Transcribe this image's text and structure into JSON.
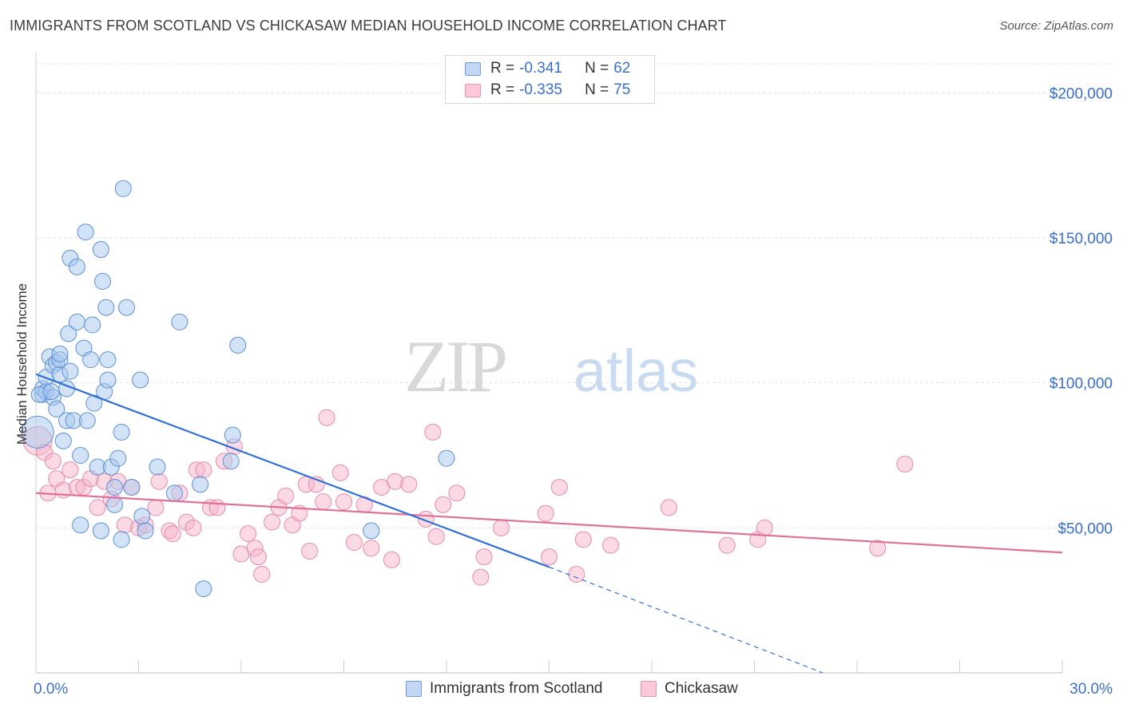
{
  "header": {
    "title": "IMMIGRANTS FROM SCOTLAND VS CHICKASAW MEDIAN HOUSEHOLD INCOME CORRELATION CHART",
    "source": "Source: ZipAtlas.com"
  },
  "watermark": {
    "zip": "ZIP",
    "atlas": "atlas"
  },
  "legend": {
    "rows": [
      {
        "r_label": "R =",
        "r_value": "-0.341",
        "n_label": "N =",
        "n_value": "62"
      },
      {
        "r_label": "R =",
        "r_value": "-0.335",
        "n_label": "N =",
        "n_value": "75"
      }
    ]
  },
  "bottom_legend": {
    "series1": "Immigrants from Scotland",
    "series2": "Chickasaw"
  },
  "colors": {
    "series1_fill": "#a8c8f0",
    "series1_stroke": "#5b8fd6",
    "series1_line": "#2f6fd6",
    "series2_fill": "#f7b6cb",
    "series2_stroke": "#e68aa6",
    "series2_line": "#e0709a",
    "axis_label": "#3a6fcc",
    "grid": "#e2e2e2"
  },
  "chart_data": {
    "type": "scatter",
    "title": "IMMIGRANTS FROM SCOTLAND VS CHICKASAW MEDIAN HOUSEHOLD INCOME CORRELATION CHART",
    "xlabel": "",
    "ylabel": "Median Household Income",
    "xlim": [
      0,
      30
    ],
    "ylim": [
      0,
      210000
    ],
    "x_tick_labels": [
      "0.0%",
      "30.0%"
    ],
    "y_ticks": [
      50000,
      100000,
      150000,
      200000
    ],
    "y_tick_labels": [
      "$50,000",
      "$100,000",
      "$150,000",
      "$200,000"
    ],
    "grid": true,
    "legend_position": "top-center",
    "series": [
      {
        "name": "Immigrants from Scotland",
        "r": -0.341,
        "n": 62,
        "trend": {
          "x": [
            0,
            15
          ],
          "y": [
            103000,
            36500
          ],
          "dashed_to": [
            23,
            0
          ]
        },
        "points": [
          [
            0.05,
            83000
          ],
          [
            0.2,
            96000
          ],
          [
            0.2,
            98000
          ],
          [
            0.3,
            97000
          ],
          [
            0.3,
            102000
          ],
          [
            0.4,
            109000
          ],
          [
            0.5,
            106000
          ],
          [
            0.5,
            95000
          ],
          [
            0.6,
            107000
          ],
          [
            0.6,
            91000
          ],
          [
            0.7,
            103000
          ],
          [
            0.7,
            108000
          ],
          [
            0.7,
            110000
          ],
          [
            0.8,
            80000
          ],
          [
            0.9,
            98000
          ],
          [
            0.9,
            87000
          ],
          [
            0.95,
            117000
          ],
          [
            1.0,
            143000
          ],
          [
            1.0,
            104000
          ],
          [
            1.1,
            87000
          ],
          [
            1.2,
            140000
          ],
          [
            1.2,
            121000
          ],
          [
            1.3,
            75000
          ],
          [
            1.3,
            51000
          ],
          [
            1.4,
            112000
          ],
          [
            1.45,
            152000
          ],
          [
            1.5,
            87000
          ],
          [
            1.6,
            108000
          ],
          [
            1.65,
            120000
          ],
          [
            1.7,
            93000
          ],
          [
            1.8,
            71000
          ],
          [
            1.9,
            49000
          ],
          [
            1.9,
            146000
          ],
          [
            1.95,
            135000
          ],
          [
            2.0,
            97000
          ],
          [
            2.05,
            126000
          ],
          [
            2.1,
            101000
          ],
          [
            2.1,
            108000
          ],
          [
            2.2,
            71000
          ],
          [
            2.3,
            64000
          ],
          [
            2.3,
            58000
          ],
          [
            2.4,
            74000
          ],
          [
            2.5,
            83000
          ],
          [
            2.5,
            46000
          ],
          [
            2.55,
            167000
          ],
          [
            2.65,
            126000
          ],
          [
            2.8,
            64000
          ],
          [
            3.05,
            101000
          ],
          [
            3.1,
            54000
          ],
          [
            3.2,
            49000
          ],
          [
            3.55,
            71000
          ],
          [
            4.05,
            62000
          ],
          [
            4.2,
            121000
          ],
          [
            4.8,
            65000
          ],
          [
            4.9,
            29000
          ],
          [
            5.7,
            73000
          ],
          [
            5.75,
            82000
          ],
          [
            5.9,
            113000
          ],
          [
            9.8,
            49000
          ],
          [
            12.0,
            74000
          ],
          [
            0.1,
            96000
          ],
          [
            0.45,
            97000
          ]
        ]
      },
      {
        "name": "Chickasaw",
        "r": -0.335,
        "n": 75,
        "trend": {
          "x": [
            0,
            30
          ],
          "y": [
            62000,
            41500
          ]
        },
        "points": [
          [
            0.05,
            80000
          ],
          [
            0.25,
            76000
          ],
          [
            0.5,
            73000
          ],
          [
            0.6,
            67000
          ],
          [
            0.8,
            63000
          ],
          [
            1.0,
            70000
          ],
          [
            1.2,
            64000
          ],
          [
            1.4,
            64000
          ],
          [
            1.6,
            67000
          ],
          [
            1.8,
            57000
          ],
          [
            2.0,
            66000
          ],
          [
            2.2,
            60000
          ],
          [
            2.4,
            66000
          ],
          [
            2.6,
            51000
          ],
          [
            2.8,
            64000
          ],
          [
            3.0,
            50000
          ],
          [
            3.2,
            51000
          ],
          [
            3.5,
            57000
          ],
          [
            3.6,
            66000
          ],
          [
            3.9,
            49000
          ],
          [
            4.0,
            48000
          ],
          [
            4.2,
            62000
          ],
          [
            4.4,
            52000
          ],
          [
            4.6,
            50000
          ],
          [
            4.7,
            70000
          ],
          [
            4.9,
            70000
          ],
          [
            5.1,
            57000
          ],
          [
            5.3,
            57000
          ],
          [
            5.5,
            73000
          ],
          [
            5.8,
            78000
          ],
          [
            6.0,
            41000
          ],
          [
            6.2,
            48000
          ],
          [
            6.4,
            43000
          ],
          [
            6.5,
            40000
          ],
          [
            6.6,
            34000
          ],
          [
            6.9,
            52000
          ],
          [
            7.1,
            57000
          ],
          [
            7.3,
            61000
          ],
          [
            7.5,
            51000
          ],
          [
            7.7,
            55000
          ],
          [
            7.9,
            65000
          ],
          [
            8.0,
            42000
          ],
          [
            8.2,
            65000
          ],
          [
            8.4,
            59000
          ],
          [
            8.5,
            88000
          ],
          [
            8.9,
            69000
          ],
          [
            9.0,
            59000
          ],
          [
            9.3,
            45000
          ],
          [
            9.6,
            58000
          ],
          [
            9.8,
            43000
          ],
          [
            10.1,
            64000
          ],
          [
            10.4,
            39000
          ],
          [
            10.5,
            66000
          ],
          [
            10.9,
            65000
          ],
          [
            11.4,
            53000
          ],
          [
            11.6,
            83000
          ],
          [
            11.7,
            47000
          ],
          [
            11.9,
            58000
          ],
          [
            12.3,
            62000
          ],
          [
            13.0,
            33000
          ],
          [
            13.1,
            40000
          ],
          [
            13.6,
            50000
          ],
          [
            14.9,
            55000
          ],
          [
            15.0,
            40000
          ],
          [
            15.3,
            64000
          ],
          [
            15.8,
            34000
          ],
          [
            16.0,
            46000
          ],
          [
            16.8,
            44000
          ],
          [
            18.5,
            57000
          ],
          [
            20.2,
            44000
          ],
          [
            21.1,
            46000
          ],
          [
            21.3,
            50000
          ],
          [
            24.6,
            43000
          ],
          [
            25.4,
            72000
          ],
          [
            0.35,
            62000
          ]
        ]
      }
    ]
  }
}
